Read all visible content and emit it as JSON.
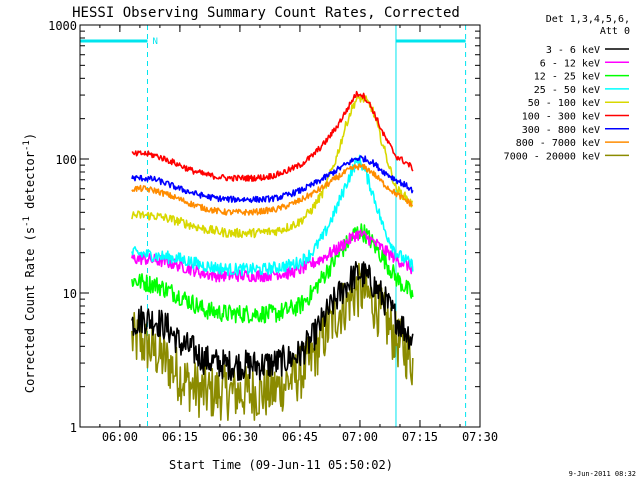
{
  "chart_data": {
    "type": "line",
    "title": "HESSI Observing Summary Count Rates, Corrected",
    "xlabel": "Start Time (09-Jun-11 05:50:02)",
    "ylabel_main": "Corrected Count Rate (s",
    "ylabel_sup1": "-1",
    "ylabel_mid": " detector",
    "ylabel_sup2": "-1",
    "ylabel_end": ")",
    "yscale": "log",
    "xlim": [
      5.8339,
      7.5
    ],
    "ylim": [
      1,
      1000
    ],
    "grid": false,
    "legend_placement": "right-outside",
    "x_ticks": [
      {
        "value": 6.0,
        "label": "06:00"
      },
      {
        "value": 6.25,
        "label": "06:15"
      },
      {
        "value": 6.5,
        "label": "06:30"
      },
      {
        "value": 6.75,
        "label": "06:45"
      },
      {
        "value": 7.0,
        "label": "07:00"
      },
      {
        "value": 7.25,
        "label": "07:15"
      },
      {
        "value": 7.5,
        "label": "07:30"
      }
    ],
    "y_ticks": [
      {
        "value": 1,
        "label": "1"
      },
      {
        "value": 10,
        "label": "10"
      },
      {
        "value": 100,
        "label": "100"
      },
      {
        "value": 1000,
        "label": "1000"
      }
    ],
    "legend_header": [
      "Det 1,3,4,5,6,",
      "Att 0"
    ],
    "timestamp": "9-Jun-2011 08:32",
    "night_label": "N",
    "spacecraft_night": [
      {
        "start": 5.8339,
        "end": 6.115,
        "color": "#00e5ee"
      },
      {
        "start": 7.15,
        "end": 7.44,
        "color": "#00e5ee"
      }
    ],
    "saa_lines": [
      5.8339,
      7.15
    ],
    "dashed_lines": [
      6.115,
      7.44
    ],
    "x": [
      6.05,
      6.1,
      6.15,
      6.2,
      6.25,
      6.3,
      6.35,
      6.4,
      6.45,
      6.5,
      6.55,
      6.6,
      6.65,
      6.7,
      6.75,
      6.8,
      6.85,
      6.9,
      6.95,
      6.98,
      7.0,
      7.02,
      7.05,
      7.1,
      7.15,
      7.2,
      7.22
    ],
    "series": [
      {
        "name": "3 - 6 keV",
        "color": "#000000",
        "noise": 0.1,
        "values": [
          6,
          6.5,
          6.2,
          5.5,
          4.2,
          3.8,
          3.2,
          3.0,
          2.9,
          2.9,
          2.9,
          2.9,
          3.0,
          3.2,
          3.5,
          4.5,
          6.5,
          9.0,
          12.0,
          13.5,
          14.0,
          13.5,
          12.0,
          9.0,
          6.5,
          5.0,
          4.5
        ]
      },
      {
        "name": "6 - 12 keV",
        "color": "#ff00ff",
        "noise": 0.04,
        "values": [
          18,
          18,
          17.5,
          17,
          16,
          15,
          14,
          13.5,
          13.5,
          13.5,
          13.5,
          13.5,
          14,
          14,
          15,
          16.5,
          18.5,
          21,
          24.5,
          27,
          27.5,
          26.5,
          24.5,
          21,
          18,
          16,
          15
        ]
      },
      {
        "name": "12 - 25 keV",
        "color": "#00ff00",
        "noise": 0.06,
        "values": [
          12.5,
          12,
          11.5,
          10.5,
          9.5,
          8.5,
          7.5,
          7.2,
          7.0,
          7.0,
          7.0,
          7.0,
          7.0,
          7.5,
          8.0,
          10.0,
          13.5,
          18.0,
          24.0,
          28.0,
          29.0,
          28.0,
          24.0,
          18.0,
          13.0,
          10.5,
          9.5
        ]
      },
      {
        "name": "25 - 50 keV",
        "color": "#00ffff",
        "noise": 0.04,
        "values": [
          20,
          19.5,
          19,
          18.5,
          18,
          17,
          16,
          15.5,
          15,
          15,
          15,
          15,
          15.5,
          16,
          17,
          20,
          27,
          42,
          70,
          92,
          97,
          82,
          58,
          30,
          20,
          17,
          16
        ]
      },
      {
        "name": "50 - 100 keV",
        "color": "#d8d800",
        "noise": 0.03,
        "values": [
          38,
          38,
          37.5,
          36,
          34,
          32,
          30,
          29,
          28,
          28,
          28,
          28.5,
          29,
          31,
          34,
          42,
          58,
          100,
          200,
          270,
          285,
          280,
          240,
          120,
          60,
          50,
          45
        ]
      },
      {
        "name": "100 - 300 keV",
        "color": "#ff0000",
        "noise": 0.02,
        "values": [
          108,
          110,
          106,
          98,
          90,
          82,
          77,
          74,
          72,
          72,
          72,
          73,
          76,
          82,
          90,
          105,
          130,
          170,
          240,
          300,
          310,
          290,
          240,
          150,
          105,
          92,
          85
        ]
      },
      {
        "name": "300 - 800 keV",
        "color": "#0000ff",
        "noise": 0.02,
        "values": [
          72,
          72,
          70,
          65,
          60,
          56,
          53,
          51,
          50,
          50,
          50,
          50,
          51,
          54,
          58,
          64,
          72,
          82,
          93,
          100,
          102,
          100,
          95,
          80,
          70,
          62,
          58
        ]
      },
      {
        "name": "800 - 7000 keV",
        "color": "#ff8c00",
        "noise": 0.02,
        "values": [
          60,
          60,
          58,
          54,
          50,
          46,
          43,
          41,
          40,
          40,
          40,
          41,
          42,
          45,
          49,
          55,
          62,
          72,
          82,
          87,
          88,
          86,
          80,
          65,
          55,
          48,
          45
        ]
      },
      {
        "name": "7000 - 20000 keV",
        "color": "#8b8b00",
        "noise": 0.18,
        "values": [
          4.5,
          4.2,
          3.6,
          3.0,
          2.4,
          2.0,
          1.8,
          1.8,
          1.8,
          1.8,
          1.8,
          1.8,
          1.9,
          2.2,
          2.5,
          3.2,
          4.8,
          6.8,
          8.8,
          10.0,
          10.5,
          10.0,
          8.8,
          6.5,
          4.5,
          3.5,
          3.0
        ]
      }
    ]
  }
}
